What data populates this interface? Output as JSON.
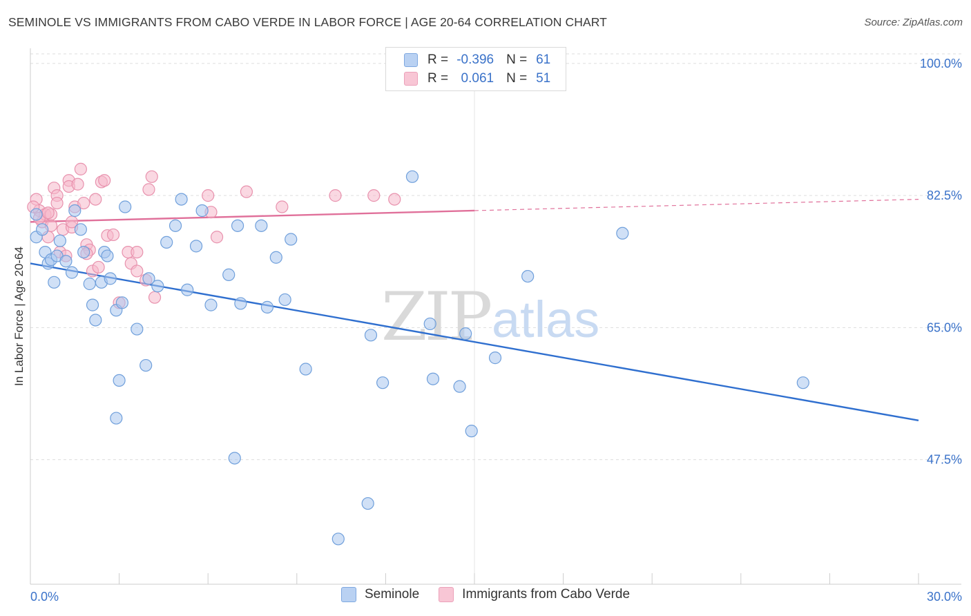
{
  "header": {
    "title": "SEMINOLE VS IMMIGRANTS FROM CABO VERDE IN LABOR FORCE | AGE 20-64 CORRELATION CHART",
    "source": "Source: ZipAtlas.com"
  },
  "legend_top": {
    "rows": [
      {
        "r_label": "R =",
        "r_value": "-0.396",
        "n_label": "N =",
        "n_value": "61"
      },
      {
        "r_label": "R =",
        "r_value": " 0.061",
        "n_label": "N =",
        "n_value": "51"
      }
    ]
  },
  "legend_bottom": {
    "items": [
      "Seminole",
      "Immigrants from Cabo Verde"
    ]
  },
  "watermark": {
    "zip": "ZIP",
    "atlas": "atlas"
  },
  "colors": {
    "seminole_fill": "#a9c6ee",
    "seminole_stroke": "#6f9fdb",
    "seminole_line": "#2f6fcf",
    "cabo_fill": "#f5b8cb",
    "cabo_stroke": "#e891ad",
    "cabo_line": "#e0709a",
    "tick_label": "#3a72c9"
  },
  "chart_data": {
    "type": "scatter",
    "title": "SEMINOLE VS IMMIGRANTS FROM CABO VERDE IN LABOR FORCE | AGE 20-64 CORRELATION CHART",
    "xlabel": "",
    "ylabel": "In Labor Force | Age 20-64",
    "xlim": [
      0,
      30
    ],
    "ylim": [
      31,
      102
    ],
    "x_tick_labels": [
      "0.0%",
      "30.0%"
    ],
    "y_ticks": [
      47.5,
      65.0,
      82.5,
      100.0
    ],
    "y_tick_labels": [
      "47.5%",
      "65.0%",
      "82.5%",
      "100.0%"
    ],
    "grid": true,
    "legend_placement": "top-center and bottom",
    "series": [
      {
        "name": "Seminole",
        "r": -0.396,
        "n": 61,
        "trend": {
          "x": [
            0,
            30
          ],
          "y": [
            73.5,
            52.7
          ]
        },
        "points": [
          [
            0.2,
            77.0
          ],
          [
            0.4,
            78.0
          ],
          [
            0.5,
            75.0
          ],
          [
            0.6,
            73.5
          ],
          [
            0.7,
            74.0
          ],
          [
            0.8,
            71.0
          ],
          [
            0.9,
            74.5
          ],
          [
            1.0,
            76.5
          ],
          [
            1.2,
            73.8
          ],
          [
            1.4,
            72.3
          ],
          [
            1.5,
            80.5
          ],
          [
            1.7,
            78.0
          ],
          [
            1.8,
            75.0
          ],
          [
            2.0,
            70.8
          ],
          [
            2.1,
            68.0
          ],
          [
            2.2,
            66.0
          ],
          [
            2.4,
            71.0
          ],
          [
            2.5,
            75.0
          ],
          [
            2.6,
            74.5
          ],
          [
            2.7,
            71.5
          ],
          [
            2.9,
            67.3
          ],
          [
            3.1,
            68.3
          ],
          [
            3.2,
            81.0
          ],
          [
            3.0,
            58.0
          ],
          [
            2.9,
            53.0
          ],
          [
            3.6,
            64.8
          ],
          [
            3.9,
            60.0
          ],
          [
            4.0,
            71.5
          ],
          [
            4.3,
            70.5
          ],
          [
            4.6,
            76.3
          ],
          [
            4.9,
            78.5
          ],
          [
            5.1,
            82.0
          ],
          [
            5.3,
            70.0
          ],
          [
            5.6,
            75.8
          ],
          [
            5.8,
            80.5
          ],
          [
            6.1,
            68.0
          ],
          [
            6.7,
            72.0
          ],
          [
            7.0,
            78.5
          ],
          [
            7.1,
            68.2
          ],
          [
            7.8,
            78.5
          ],
          [
            8.0,
            67.7
          ],
          [
            8.3,
            74.3
          ],
          [
            8.6,
            68.7
          ],
          [
            8.8,
            76.7
          ],
          [
            9.3,
            59.5
          ],
          [
            10.4,
            37.0
          ],
          [
            11.4,
            41.7
          ],
          [
            11.5,
            64.0
          ],
          [
            11.9,
            57.7
          ],
          [
            12.9,
            85.0
          ],
          [
            13.5,
            65.5
          ],
          [
            13.6,
            58.2
          ],
          [
            14.5,
            57.2
          ],
          [
            14.7,
            64.2
          ],
          [
            14.9,
            51.3
          ],
          [
            15.7,
            61.0
          ],
          [
            6.9,
            47.7
          ],
          [
            16.8,
            71.8
          ],
          [
            20.0,
            77.5
          ],
          [
            26.1,
            57.7
          ],
          [
            0.2,
            80.0
          ]
        ]
      },
      {
        "name": "Immigrants from Cabo Verde",
        "r": 0.061,
        "n": 51,
        "trend": {
          "x": [
            0,
            15,
            30
          ],
          "y": [
            79.0,
            80.5,
            82.0
          ]
        },
        "points": [
          [
            0.2,
            82.0
          ],
          [
            0.3,
            80.5
          ],
          [
            0.4,
            79.0
          ],
          [
            0.5,
            80.0
          ],
          [
            0.6,
            77.0
          ],
          [
            0.7,
            80.0
          ],
          [
            0.7,
            78.5
          ],
          [
            0.8,
            83.5
          ],
          [
            0.9,
            82.5
          ],
          [
            0.9,
            81.5
          ],
          [
            1.0,
            75.0
          ],
          [
            1.1,
            78.0
          ],
          [
            1.2,
            74.5
          ],
          [
            1.3,
            84.5
          ],
          [
            1.3,
            83.7
          ],
          [
            1.4,
            78.3
          ],
          [
            1.4,
            79.0
          ],
          [
            1.5,
            81.0
          ],
          [
            1.6,
            84.0
          ],
          [
            1.7,
            86.0
          ],
          [
            1.8,
            81.5
          ],
          [
            1.9,
            76.0
          ],
          [
            2.0,
            75.3
          ],
          [
            2.1,
            72.5
          ],
          [
            2.2,
            82.0
          ],
          [
            2.3,
            73.0
          ],
          [
            2.4,
            84.3
          ],
          [
            2.5,
            84.5
          ],
          [
            2.6,
            77.2
          ],
          [
            2.8,
            77.3
          ],
          [
            3.0,
            68.3
          ],
          [
            3.3,
            75.0
          ],
          [
            3.4,
            73.5
          ],
          [
            3.6,
            75.0
          ],
          [
            3.6,
            72.5
          ],
          [
            3.9,
            71.3
          ],
          [
            4.0,
            83.3
          ],
          [
            4.1,
            85.0
          ],
          [
            4.2,
            69.0
          ],
          [
            6.0,
            82.5
          ],
          [
            6.1,
            80.3
          ],
          [
            6.3,
            77.0
          ],
          [
            7.3,
            83.0
          ],
          [
            8.5,
            81.0
          ],
          [
            10.3,
            82.5
          ],
          [
            11.6,
            82.5
          ],
          [
            12.3,
            82.0
          ],
          [
            0.1,
            81.0
          ],
          [
            0.3,
            79.5
          ],
          [
            0.6,
            80.2
          ],
          [
            1.9,
            74.8
          ]
        ]
      }
    ]
  }
}
